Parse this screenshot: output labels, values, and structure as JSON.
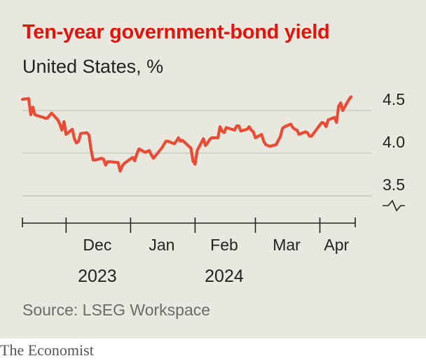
{
  "header": {
    "title": "Ten-year government-bond yield",
    "subtitle": "United States, %"
  },
  "footer": {
    "source": "Source: LSEG Workspace",
    "brand": "The Economist"
  },
  "colors": {
    "line": "#e94b35",
    "title": "#e3120b",
    "grid": "#c4c4c0",
    "background": "#e9e8df"
  },
  "chart_data": {
    "type": "line",
    "title": "Ten-year government-bond yield",
    "subtitle": "United States, %",
    "ylim": [
      3.5,
      4.6
    ],
    "yticks": [
      3.5,
      4.0,
      4.5
    ],
    "y_tick_labels": [
      "3.5",
      "4.0",
      "4.5"
    ],
    "y_axis_break": true,
    "y_axis_side": "right",
    "grid": "horizontal",
    "x_tick_dates": [
      "2023-12-01",
      "2024-01-01",
      "2024-02-01",
      "2024-03-01",
      "2024-04-01",
      "2024-04-18"
    ],
    "x_month_labels": [
      "Dec",
      "Jan",
      "Feb",
      "Mar",
      "Apr"
    ],
    "x_month_label_dates": [
      "2023-12-16",
      "2024-01-16",
      "2024-02-15",
      "2024-03-16",
      "2024-04-09"
    ],
    "x_year_labels": [
      "2023",
      "2024"
    ],
    "x_year_label_dates": [
      "2023-12-16",
      "2024-02-15"
    ],
    "series": [
      {
        "x": [
          "2023-11-10",
          "2023-11-13",
          "2023-11-14",
          "2023-11-15",
          "2023-11-16",
          "2023-11-17",
          "2023-11-20",
          "2023-11-21",
          "2023-11-22",
          "2023-11-24",
          "2023-11-27",
          "2023-11-28",
          "2023-11-29",
          "2023-11-30",
          "2023-12-01",
          "2023-12-04",
          "2023-12-05",
          "2023-12-06",
          "2023-12-07",
          "2023-12-08",
          "2023-12-11",
          "2023-12-12",
          "2023-12-13",
          "2023-12-14",
          "2023-12-15",
          "2023-12-18",
          "2023-12-19",
          "2023-12-20",
          "2023-12-21",
          "2023-12-22",
          "2023-12-26",
          "2023-12-27",
          "2023-12-28",
          "2023-12-29",
          "2024-01-02",
          "2024-01-03",
          "2024-01-04",
          "2024-01-05",
          "2024-01-08",
          "2024-01-09",
          "2024-01-10",
          "2024-01-11",
          "2024-01-12",
          "2024-01-16",
          "2024-01-17",
          "2024-01-18",
          "2024-01-19",
          "2024-01-22",
          "2024-01-23",
          "2024-01-24",
          "2024-01-25",
          "2024-01-26",
          "2024-01-29",
          "2024-01-30",
          "2024-01-31",
          "2024-02-01",
          "2024-02-02",
          "2024-02-05",
          "2024-02-06",
          "2024-02-07",
          "2024-02-08",
          "2024-02-09",
          "2024-02-12",
          "2024-02-13",
          "2024-02-14",
          "2024-02-15",
          "2024-02-16",
          "2024-02-20",
          "2024-02-21",
          "2024-02-22",
          "2024-02-23",
          "2024-02-26",
          "2024-02-27",
          "2024-02-28",
          "2024-02-29",
          "2024-03-01",
          "2024-03-04",
          "2024-03-05",
          "2024-03-06",
          "2024-03-07",
          "2024-03-08",
          "2024-03-11",
          "2024-03-12",
          "2024-03-13",
          "2024-03-14",
          "2024-03-15",
          "2024-03-18",
          "2024-03-19",
          "2024-03-20",
          "2024-03-21",
          "2024-03-22",
          "2024-03-25",
          "2024-03-26",
          "2024-03-27",
          "2024-03-28",
          "2024-04-01",
          "2024-04-02",
          "2024-04-03",
          "2024-04-04",
          "2024-04-05",
          "2024-04-08",
          "2024-04-09",
          "2024-04-10",
          "2024-04-11",
          "2024-04-12",
          "2024-04-15",
          "2024-04-16"
        ],
        "values": [
          4.63,
          4.64,
          4.45,
          4.54,
          4.45,
          4.44,
          4.42,
          4.41,
          4.41,
          4.47,
          4.39,
          4.34,
          4.27,
          4.37,
          4.22,
          4.28,
          4.17,
          4.12,
          4.14,
          4.23,
          4.24,
          4.21,
          4.04,
          3.92,
          3.92,
          3.94,
          3.93,
          3.86,
          3.9,
          3.9,
          3.89,
          3.79,
          3.85,
          3.88,
          3.95,
          3.91,
          3.99,
          4.05,
          4.01,
          4.02,
          4.03,
          3.98,
          3.94,
          4.06,
          4.1,
          4.14,
          4.14,
          4.11,
          4.14,
          4.18,
          4.14,
          4.15,
          4.08,
          4.06,
          3.91,
          3.87,
          4.03,
          4.17,
          4.09,
          4.12,
          4.16,
          4.18,
          4.18,
          4.31,
          4.26,
          4.24,
          4.3,
          4.27,
          4.32,
          4.32,
          4.26,
          4.28,
          4.31,
          4.27,
          4.25,
          4.18,
          4.22,
          4.14,
          4.1,
          4.09,
          4.08,
          4.1,
          4.15,
          4.19,
          4.29,
          4.31,
          4.34,
          4.3,
          4.28,
          4.27,
          4.22,
          4.25,
          4.24,
          4.2,
          4.2,
          4.33,
          4.36,
          4.35,
          4.31,
          4.39,
          4.42,
          4.36,
          4.55,
          4.59,
          4.5,
          4.63,
          4.66
        ]
      }
    ]
  }
}
